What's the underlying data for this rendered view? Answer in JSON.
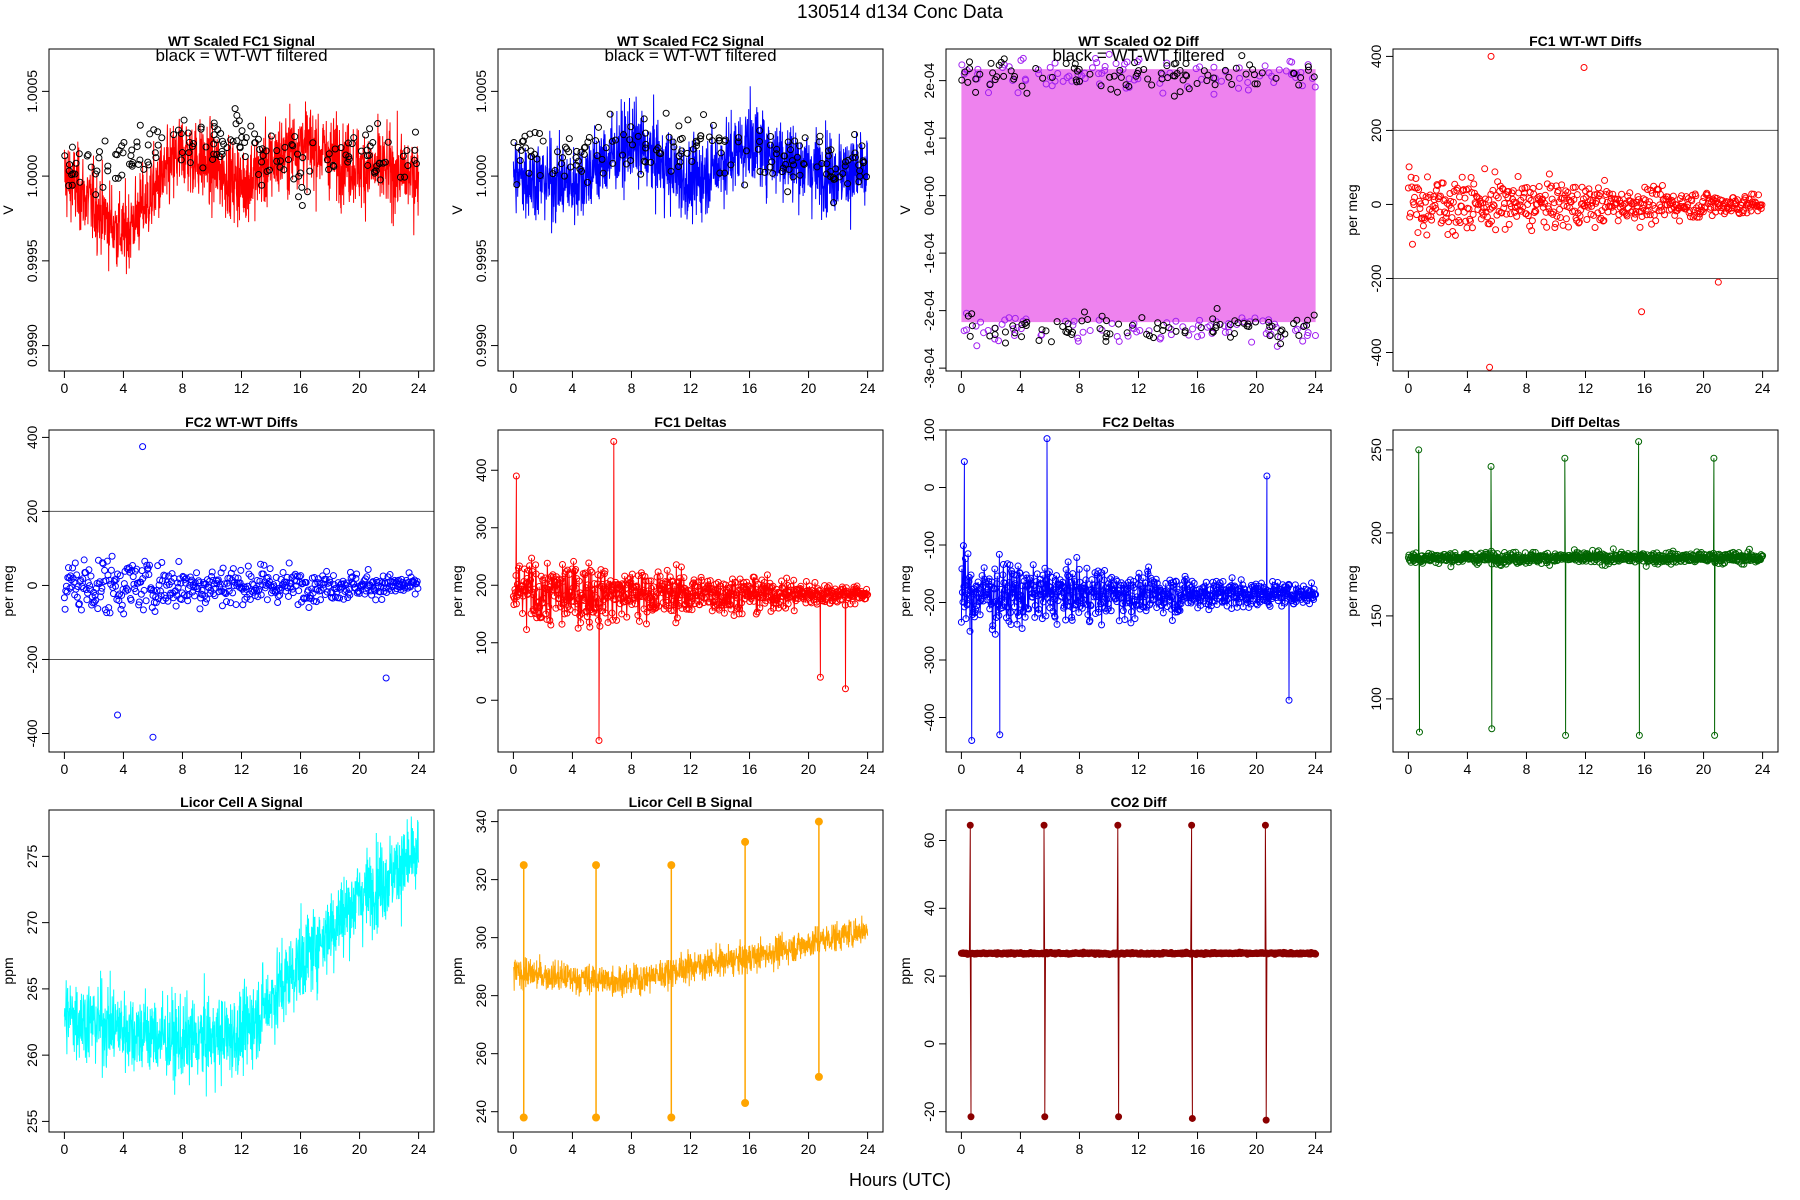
{
  "page": {
    "title": "130514   d134   Conc Data",
    "x_axis_title": "Hours (UTC)"
  },
  "chart_data": [
    {
      "id": "wt-fc1",
      "type": "line",
      "title": "WT Scaled FC1 Signal",
      "annotation": "black = WT-WT filtered",
      "ylabel": "V",
      "xlim": [
        0,
        24
      ],
      "xticks": [
        0,
        4,
        8,
        12,
        16,
        20,
        24
      ],
      "ylim": [
        0.99885,
        1.00075
      ],
      "yticks": [
        0.999,
        0.9995,
        1.0,
        1.0005
      ],
      "ytick_labels": [
        "0.9990",
        "0.9995",
        "1.0000",
        "1.0005"
      ],
      "series": [
        {
          "color": "#ff0000",
          "style": "dense-noise",
          "center": [
            1.0,
            0.99965,
            1.00015,
            0.99995,
            1.0002,
            1.00005,
            1.0
          ],
          "spread": 0.00045
        },
        {
          "color": "#000000",
          "style": "points",
          "center": [
            1.00005,
            1.0001,
            1.0002,
            1.0002,
            1.00005,
            1.00015,
            1.0001
          ],
          "spread": 0.00018
        }
      ]
    },
    {
      "id": "wt-fc2",
      "type": "line",
      "title": "WT Scaled FC2 Signal",
      "annotation": "black = WT-WT filtered",
      "ylabel": "V",
      "xlim": [
        0,
        24
      ],
      "xticks": [
        0,
        4,
        8,
        12,
        16,
        20,
        24
      ],
      "ylim": [
        0.99885,
        1.00075
      ],
      "yticks": [
        0.999,
        0.9995,
        1.0,
        1.0005
      ],
      "ytick_labels": [
        "0.9990",
        "0.9995",
        "1.0000",
        "1.0005"
      ],
      "series": [
        {
          "color": "#0000ff",
          "style": "dense-noise",
          "center": [
            1.0,
            0.99995,
            1.0002,
            0.99995,
            1.0002,
            1.00005,
            1.0
          ],
          "spread": 0.00045
        },
        {
          "color": "#000000",
          "style": "points",
          "center": [
            1.0001,
            1.0001,
            1.0002,
            1.0002,
            1.0001,
            1.0001,
            1.0001
          ],
          "spread": 0.00018
        }
      ]
    },
    {
      "id": "wt-o2diff",
      "type": "line",
      "title": "WT Scaled O2 Diff",
      "annotation": "black = WT-WT filtered",
      "ylabel": "V",
      "xlim": [
        0,
        24
      ],
      "xticks": [
        0,
        4,
        8,
        12,
        16,
        20,
        24
      ],
      "ylim": [
        -0.000305,
        0.000255
      ],
      "yticks": [
        -0.0003,
        -0.0002,
        -0.0001,
        0,
        0.0001,
        0.0002
      ],
      "ytick_labels": [
        "-3e-04",
        "-2e-04",
        "-1e-04",
        "0e+00",
        "1e-04",
        "2e-04"
      ],
      "series": [
        {
          "color": "#ee82ee",
          "style": "band",
          "band": [
            -0.00022,
            0.00022
          ]
        },
        {
          "color": "#a020f0",
          "style": "points",
          "upper": 0.00021,
          "lower": -0.00023,
          "spread": 3e-05
        },
        {
          "color": "#000000",
          "style": "points",
          "upper": 0.00021,
          "lower": -0.00023,
          "spread": 3e-05
        }
      ]
    },
    {
      "id": "fc1-wtwt",
      "type": "scatter",
      "title": "FC1 WT-WT Diffs",
      "ylabel": "per meg",
      "xlim": [
        0,
        24
      ],
      "xticks": [
        0,
        4,
        8,
        12,
        16,
        20,
        24
      ],
      "ylim": [
        -450,
        420
      ],
      "yticks": [
        -400,
        -200,
        0,
        200,
        400
      ],
      "ytick_labels": [
        "-400",
        "-200",
        "0",
        "200",
        "400"
      ],
      "hlines": [
        -200,
        200
      ],
      "series": [
        {
          "color": "#ff0000",
          "style": "scatter",
          "center": 0,
          "spread_start": 150,
          "spread_end": 45,
          "outliers": [
            [
              5.6,
              400
            ],
            [
              11.9,
              370
            ],
            [
              5.5,
              -440
            ],
            [
              15.8,
              -290
            ],
            [
              21,
              -210
            ]
          ]
        }
      ]
    },
    {
      "id": "fc2-wtwt",
      "type": "scatter",
      "title": "FC2 WT-WT Diffs",
      "ylabel": "per meg",
      "xlim": [
        0,
        24
      ],
      "xticks": [
        0,
        4,
        8,
        12,
        16,
        20,
        24
      ],
      "ylim": [
        -450,
        420
      ],
      "yticks": [
        -400,
        -200,
        0,
        200,
        400
      ],
      "ytick_labels": [
        "-400",
        "-200",
        "0",
        "200",
        "400"
      ],
      "hlines": [
        -200,
        200
      ],
      "series": [
        {
          "color": "#0000ff",
          "style": "scatter",
          "center": 0,
          "spread_start": 150,
          "spread_end": 45,
          "outliers": [
            [
              5.3,
              375
            ],
            [
              6.0,
              -410
            ],
            [
              3.6,
              -350
            ],
            [
              21.8,
              -250
            ]
          ]
        }
      ]
    },
    {
      "id": "fc1-deltas",
      "type": "line",
      "title": "FC1 Deltas",
      "ylabel": "per meg",
      "xlim": [
        0,
        24
      ],
      "xticks": [
        0,
        4,
        8,
        12,
        16,
        20,
        24
      ],
      "ylim": [
        -90,
        470
      ],
      "yticks": [
        0,
        100,
        200,
        300,
        400
      ],
      "ytick_labels": [
        "0",
        "100",
        "200",
        "300",
        "400"
      ],
      "series": [
        {
          "color": "#ff0000",
          "style": "line-points",
          "center": 185,
          "spread_start": 110,
          "spread_end": 25,
          "outliers": [
            [
              6.8,
              450
            ],
            [
              5.8,
              -70
            ],
            [
              0.2,
              390
            ],
            [
              20.8,
              40
            ],
            [
              22.5,
              20
            ]
          ]
        }
      ]
    },
    {
      "id": "fc2-deltas",
      "type": "line",
      "title": "FC2 Deltas",
      "ylabel": "per meg",
      "xlim": [
        0,
        24
      ],
      "xticks": [
        0,
        4,
        8,
        12,
        16,
        20,
        24
      ],
      "ylim": [
        -460,
        100
      ],
      "yticks": [
        -400,
        -300,
        -200,
        -100,
        0,
        100
      ],
      "ytick_labels": [
        "-400",
        "-300",
        "-200",
        "-100",
        "0",
        "100"
      ],
      "series": [
        {
          "color": "#0000ff",
          "style": "line-points",
          "center": -185,
          "spread_start": 110,
          "spread_end": 25,
          "outliers": [
            [
              5.8,
              85
            ],
            [
              0.2,
              45
            ],
            [
              0.7,
              -440
            ],
            [
              2.6,
              -430
            ],
            [
              20.7,
              20
            ],
            [
              22.2,
              -370
            ]
          ]
        }
      ]
    },
    {
      "id": "diff-deltas",
      "type": "line",
      "title": "Diff Deltas",
      "ylabel": "per meg",
      "xlim": [
        0,
        24
      ],
      "xticks": [
        0,
        4,
        8,
        12,
        16,
        20,
        24
      ],
      "ylim": [
        68,
        262
      ],
      "yticks": [
        100,
        150,
        200,
        250
      ],
      "ytick_labels": [
        "100",
        "150",
        "200",
        "250"
      ],
      "series": [
        {
          "color": "#006400",
          "style": "line-points",
          "center": 185,
          "spread_start": 6,
          "spread_end": 6,
          "spikes": [
            [
              0.7,
              250,
              80
            ],
            [
              5.6,
              240,
              82
            ],
            [
              10.6,
              245,
              78
            ],
            [
              15.6,
              255,
              78
            ],
            [
              20.7,
              245,
              78
            ]
          ]
        }
      ]
    },
    {
      "id": "licor-a",
      "type": "line",
      "title": "Licor Cell A Signal",
      "ylabel": "ppm",
      "xlim": [
        0,
        24
      ],
      "xticks": [
        0,
        4,
        8,
        12,
        16,
        20,
        24
      ],
      "ylim": [
        254.2,
        278.5
      ],
      "yticks": [
        255,
        260,
        265,
        270,
        275
      ],
      "ytick_labels": [
        "255",
        "260",
        "265",
        "270",
        "275"
      ],
      "series": [
        {
          "color": "#00ffff",
          "style": "dense-noise",
          "center": [
            263,
            262,
            261,
            261.5,
            267,
            272,
            275
          ],
          "spread": 6
        }
      ]
    },
    {
      "id": "licor-b",
      "type": "line",
      "title": "Licor Cell B Signal",
      "ylabel": "ppm",
      "ylabel_offset": true,
      "xlim": [
        0,
        24
      ],
      "xticks": [
        0,
        4,
        8,
        12,
        16,
        20,
        24
      ],
      "ylim": [
        233,
        344
      ],
      "yticks": [
        240,
        260,
        280,
        300,
        320,
        340
      ],
      "ytick_labels": [
        "240",
        "260",
        "280",
        "300",
        "320",
        "340"
      ],
      "series": [
        {
          "color": "#ffa500",
          "style": "dense-noise",
          "center": [
            288,
            286,
            285,
            290,
            293,
            298,
            303
          ],
          "spread": 10,
          "spikes": [
            [
              0.7,
              325,
              238
            ],
            [
              5.6,
              325,
              238
            ],
            [
              10.7,
              325,
              238
            ],
            [
              15.7,
              333,
              243
            ],
            [
              20.7,
              340,
              252
            ]
          ]
        }
      ]
    },
    {
      "id": "co2-diff",
      "type": "line",
      "title": "CO2 Diff",
      "ylabel": "ppm",
      "xlim": [
        0,
        24
      ],
      "xticks": [
        0,
        4,
        8,
        12,
        16,
        20,
        24
      ],
      "ylim": [
        -26,
        69
      ],
      "yticks": [
        -20,
        0,
        20,
        40,
        60
      ],
      "ytick_labels": [
        "-20",
        "0",
        "20",
        "40",
        "60"
      ],
      "series": [
        {
          "color": "#8b0000",
          "style": "flat-line",
          "center": 26.7,
          "spread": 0.5,
          "spikes": [
            [
              0.6,
              64.5,
              -21.5
            ],
            [
              5.6,
              64.5,
              -21.5
            ],
            [
              10.6,
              64.5,
              -21.5
            ],
            [
              15.6,
              64.5,
              -22
            ],
            [
              20.6,
              64.5,
              -22.5
            ]
          ]
        }
      ]
    }
  ]
}
